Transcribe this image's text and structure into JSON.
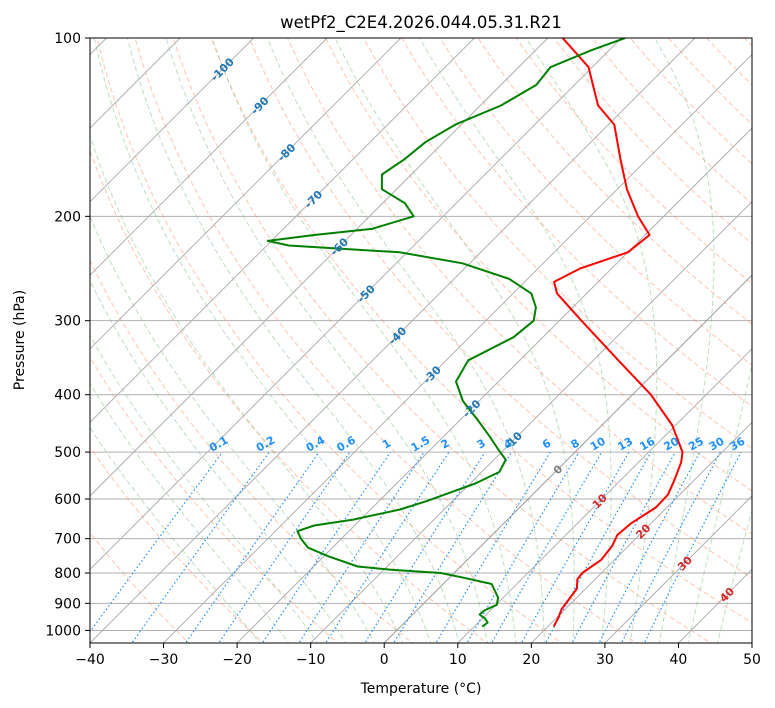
{
  "chart_data": {
    "type": "line",
    "subtype": "skew-T log-P diagram",
    "title": "wetPf2_C2E4.2026.044.05.31.R21",
    "xlabel": "Temperature (°C)",
    "ylabel": "Pressure (hPa)",
    "xlim": [
      -40,
      50
    ],
    "ylim": [
      1050,
      100
    ],
    "x_ticks": [
      -40,
      -30,
      -20,
      -10,
      0,
      10,
      20,
      30,
      40,
      50
    ],
    "y_ticks": [
      100,
      200,
      300,
      400,
      500,
      600,
      700,
      800,
      900,
      1000
    ],
    "grid": true,
    "colors": {
      "temperature": "#ff0000",
      "dewpoint": "#008000",
      "isotherm": "#1f77b4",
      "isotherm_warm": "#d62728",
      "zero_isotherm": "#808080",
      "dry_adiabat": "#ff7f50",
      "moist_adiabat": "#7fbf7f",
      "mixing_ratio": "#1e90ff",
      "grid": "#b0b0b0"
    },
    "series": [
      {
        "name": "Temperature",
        "color": "#ff0000",
        "points": [
          {
            "p": 985,
            "t": 20.8
          },
          {
            "p": 950,
            "t": 20.2
          },
          {
            "p": 920,
            "t": 19.5
          },
          {
            "p": 880,
            "t": 19.1
          },
          {
            "p": 850,
            "t": 18.8
          },
          {
            "p": 820,
            "t": 17.6
          },
          {
            "p": 800,
            "t": 17.4
          },
          {
            "p": 760,
            "t": 18.2
          },
          {
            "p": 720,
            "t": 17.8
          },
          {
            "p": 690,
            "t": 17.0
          },
          {
            "p": 660,
            "t": 17.3
          },
          {
            "p": 620,
            "t": 18.5
          },
          {
            "p": 590,
            "t": 18.4
          },
          {
            "p": 560,
            "t": 17.4
          },
          {
            "p": 520,
            "t": 15.8
          },
          {
            "p": 500,
            "t": 14.6
          },
          {
            "p": 450,
            "t": 9.5
          },
          {
            "p": 400,
            "t": 2.5
          },
          {
            "p": 350,
            "t": -6.6
          },
          {
            "p": 300,
            "t": -17.0
          },
          {
            "p": 270,
            "t": -24.0
          },
          {
            "p": 258,
            "t": -26.0
          },
          {
            "p": 245,
            "t": -24.3
          },
          {
            "p": 230,
            "t": -20.0
          },
          {
            "p": 215,
            "t": -19.4
          },
          {
            "p": 200,
            "t": -23.5
          },
          {
            "p": 180,
            "t": -28.7
          },
          {
            "p": 160,
            "t": -33.7
          },
          {
            "p": 140,
            "t": -39.2
          },
          {
            "p": 130,
            "t": -44.0
          },
          {
            "p": 120,
            "t": -47.5
          },
          {
            "p": 112,
            "t": -50.5
          },
          {
            "p": 100,
            "t": -58.0
          }
        ]
      },
      {
        "name": "Dewpoint",
        "color": "#008000",
        "points": [
          {
            "p": 985,
            "t": 11.1
          },
          {
            "p": 970,
            "t": 11.3
          },
          {
            "p": 955,
            "t": 10.4
          },
          {
            "p": 940,
            "t": 9.1
          },
          {
            "p": 925,
            "t": 9.2
          },
          {
            "p": 905,
            "t": 10.1
          },
          {
            "p": 880,
            "t": 9.3
          },
          {
            "p": 855,
            "t": 7.8
          },
          {
            "p": 835,
            "t": 6.6
          },
          {
            "p": 815,
            "t": 2.0
          },
          {
            "p": 800,
            "t": -1.8
          },
          {
            "p": 790,
            "t": -9.0
          },
          {
            "p": 780,
            "t": -14.0
          },
          {
            "p": 750,
            "t": -19.3
          },
          {
            "p": 725,
            "t": -23.3
          },
          {
            "p": 700,
            "t": -25.5
          },
          {
            "p": 680,
            "t": -27.0
          },
          {
            "p": 665,
            "t": -25.5
          },
          {
            "p": 650,
            "t": -21.0
          },
          {
            "p": 625,
            "t": -16.0
          },
          {
            "p": 605,
            "t": -13.5
          },
          {
            "p": 590,
            "t": -12.0
          },
          {
            "p": 565,
            "t": -9.3
          },
          {
            "p": 540,
            "t": -7.6
          },
          {
            "p": 515,
            "t": -8.4
          },
          {
            "p": 495,
            "t": -10.8
          },
          {
            "p": 470,
            "t": -13.8
          },
          {
            "p": 440,
            "t": -17.8
          },
          {
            "p": 410,
            "t": -22.2
          },
          {
            "p": 380,
            "t": -25.8
          },
          {
            "p": 350,
            "t": -27.0
          },
          {
            "p": 320,
            "t": -24.0
          },
          {
            "p": 300,
            "t": -23.5
          },
          {
            "p": 285,
            "t": -25.0
          },
          {
            "p": 270,
            "t": -27.5
          },
          {
            "p": 255,
            "t": -32.5
          },
          {
            "p": 240,
            "t": -41.0
          },
          {
            "p": 230,
            "t": -51.0
          },
          {
            "p": 224,
            "t": -67.0
          },
          {
            "p": 220,
            "t": -70.5
          },
          {
            "p": 215,
            "t": -65.0
          },
          {
            "p": 210,
            "t": -58.0
          },
          {
            "p": 200,
            "t": -54.0
          },
          {
            "p": 190,
            "t": -57.0
          },
          {
            "p": 180,
            "t": -62.0
          },
          {
            "p": 170,
            "t": -64.0
          },
          {
            "p": 160,
            "t": -63.0
          },
          {
            "p": 150,
            "t": -62.5
          },
          {
            "p": 140,
            "t": -60.8
          },
          {
            "p": 130,
            "t": -57.2
          },
          {
            "p": 120,
            "t": -55.2
          },
          {
            "p": 112,
            "t": -55.7
          },
          {
            "p": 105,
            "t": -52.5
          },
          {
            "p": 100,
            "t": -49.5
          }
        ]
      }
    ],
    "isotherm_labels": [
      {
        "text": "-100",
        "t": -100,
        "p": 113
      },
      {
        "text": "-90",
        "t": -90,
        "p": 130
      },
      {
        "text": "-80",
        "t": -80,
        "p": 156
      },
      {
        "text": "-70",
        "t": -70,
        "p": 187
      },
      {
        "text": "-60",
        "t": -60,
        "p": 225
      },
      {
        "text": "-50",
        "t": -50,
        "p": 270
      },
      {
        "text": "-40",
        "t": -40,
        "p": 318
      },
      {
        "text": "-30",
        "t": -30,
        "p": 370
      },
      {
        "text": "-20",
        "t": -20,
        "p": 422
      },
      {
        "text": "-10",
        "t": -10,
        "p": 478
      },
      {
        "text": "0",
        "t": 0,
        "p": 535
      },
      {
        "text": "10",
        "t": 10,
        "p": 605
      },
      {
        "text": "20",
        "t": 20,
        "p": 680
      },
      {
        "text": "30",
        "t": 30,
        "p": 770
      },
      {
        "text": "40",
        "t": 40,
        "p": 870
      }
    ],
    "mixing_ratio_labels": [
      "0.1",
      "0.2",
      "0.4",
      "0.6",
      "1",
      "1.5",
      "2",
      "3",
      "4",
      "6",
      "8",
      "10",
      "13",
      "16",
      "20",
      "25",
      "30",
      "36"
    ]
  }
}
